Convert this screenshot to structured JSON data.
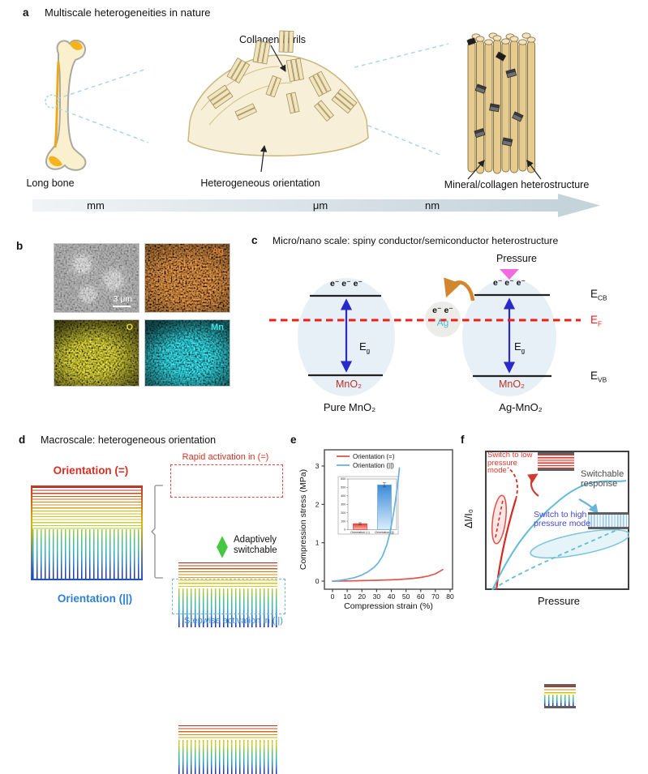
{
  "figure": {
    "a": {
      "label": "a",
      "title": "Multiscale heterogeneities in nature",
      "collagen_fibrils": "Collagen fibrils",
      "long_bone": "Long bone",
      "heterogeneous_orientation": "Heterogeneous orientation",
      "mineral_collagen": "Mineral/collagen heterostructure",
      "scale_mm": "mm",
      "scale_um": "μm",
      "scale_nm": "nm"
    },
    "b": {
      "label": "b",
      "sem_scale_bar": "3 μm",
      "map_ag": "Ag",
      "map_o": "O",
      "map_mn": "Mn"
    },
    "c": {
      "label": "c",
      "title": "Micro/nano scale: spiny conductor/semiconductor heterostructure",
      "pressure": "Pressure",
      "electrons3": "e⁻ e⁻ e⁻",
      "electrons2": "e⁻ e⁻",
      "ag": "Ag",
      "e_sym": "E",
      "cb_sub": "CB",
      "f_sub": "F",
      "vb_sub": "VB",
      "g_sub": "g",
      "mno2": "MnO₂",
      "caption_left": "Pure MnO₂",
      "caption_right": "Ag-MnO₂"
    },
    "d": {
      "label": "d",
      "title": "Macroscale: heterogeneous orientation",
      "orientation_eq": "Orientation (=)",
      "orientation_par": "Orientation (||)",
      "rapid": "Rapid activation in (=)",
      "adaptive_line1": "Adaptively",
      "adaptive_line2": "switchable",
      "stepwise": "Stepwise activation in (||)"
    },
    "e": {
      "label": "e"
    },
    "f": {
      "label": "f",
      "ylabel": "ΔI/I₀",
      "xlabel": "Pressure",
      "switch_low": "Switch to low pressure mode",
      "switchable": "Switchable response",
      "switch_high": "Switch to high pressure mode"
    }
  },
  "colors": {
    "panel_d_red": "#d63026",
    "panel_d_blue": "#2e7fd6",
    "ef_red": "#ee1f1a",
    "ag_cyan": "#52b8d8",
    "mno2_red": "#c03028",
    "map_ag": "#e08040",
    "map_o": "#e8df30",
    "map_mn": "#40e0e0"
  },
  "chart_data": [
    {
      "panel": "e",
      "type": "line",
      "xlabel": "Compression strain (%)",
      "ylabel": "Compression stress (MPa)",
      "xlim": [
        0,
        80
      ],
      "ylim": [
        -0.15,
        3.4
      ],
      "xticks": [
        0,
        10,
        20,
        30,
        40,
        50,
        60,
        70,
        80
      ],
      "yticks": [
        0,
        1,
        2,
        3
      ],
      "grid": false,
      "legend_position": "top-left",
      "series": [
        {
          "name": "Orientation (=)",
          "color": "#e0554e",
          "x": [
            0,
            5,
            10,
            15,
            20,
            25,
            30,
            35,
            40,
            45,
            50,
            55,
            60,
            65,
            70,
            75
          ],
          "y": [
            0,
            0.002,
            0.005,
            0.008,
            0.012,
            0.016,
            0.021,
            0.027,
            0.034,
            0.043,
            0.055,
            0.072,
            0.095,
            0.13,
            0.19,
            0.3
          ]
        },
        {
          "name": "Orientation (||)",
          "color": "#6ab2e2",
          "x": [
            0,
            5,
            10,
            15,
            20,
            24,
            28,
            31,
            34,
            37,
            39,
            41,
            42.5,
            44,
            45,
            45.5
          ],
          "y": [
            0,
            0.02,
            0.05,
            0.09,
            0.16,
            0.24,
            0.35,
            0.47,
            0.65,
            0.95,
            1.25,
            1.65,
            2.0,
            2.45,
            2.75,
            2.95
          ]
        }
      ],
      "inset": {
        "type": "bar",
        "ylabel": "Compression modulus (kPa)",
        "ylim": [
          0,
          600
        ],
        "yticks": [
          0,
          100,
          200,
          300,
          400,
          500,
          600
        ],
        "categories": [
          "Orientation (=)",
          "Orientation (||)"
        ],
        "values": [
          70,
          530
        ],
        "errors": [
          12,
          25
        ],
        "colors": [
          "#d84038",
          "#66a8d8"
        ]
      }
    },
    {
      "panel": "f",
      "type": "line",
      "style": "schematic",
      "xlabel": "Pressure",
      "ylabel": "ΔI/I₀",
      "series": [
        {
          "name": "low pressure mode response (steep)",
          "color": "#d42a20",
          "line": "solid+dashed"
        },
        {
          "name": "high pressure mode response (gradual)",
          "color": "#66bcd8",
          "line": "solid+dashed"
        }
      ],
      "annotations": [
        "Switch to low pressure mode",
        "Switchable response",
        "Switch to high pressure mode"
      ]
    }
  ]
}
